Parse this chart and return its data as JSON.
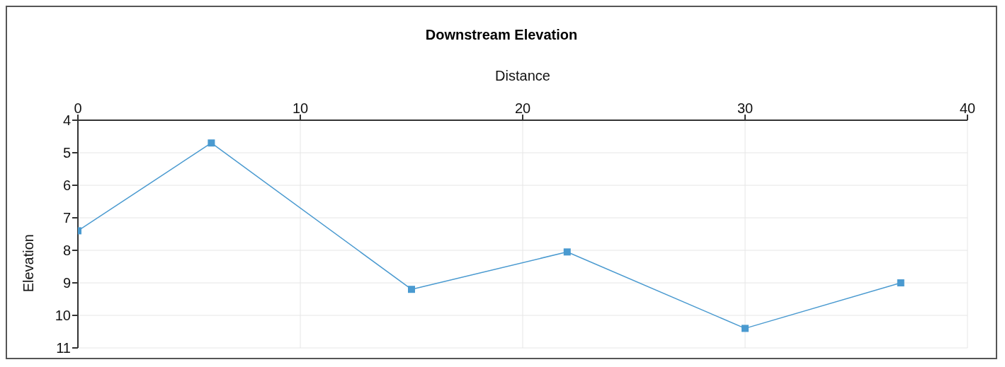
{
  "chart_data": {
    "type": "line",
    "title": "Downstream Elevation",
    "xlabel": "Distance",
    "ylabel": "Elevation",
    "x": [
      0,
      6,
      15,
      22,
      30,
      37
    ],
    "series": [
      {
        "color": "#4a9ad0",
        "values": [
          7.4,
          4.7,
          9.2,
          8.05,
          10.4,
          9.0
        ]
      }
    ],
    "xlim": [
      0,
      40
    ],
    "xticks": [
      0,
      10,
      20,
      30,
      40
    ],
    "ylim": [
      11,
      4
    ],
    "yticks": [
      4,
      5,
      6,
      7,
      8,
      9,
      10,
      11
    ],
    "grid": true,
    "marker": "square",
    "line_style": "solid",
    "legend": false
  }
}
